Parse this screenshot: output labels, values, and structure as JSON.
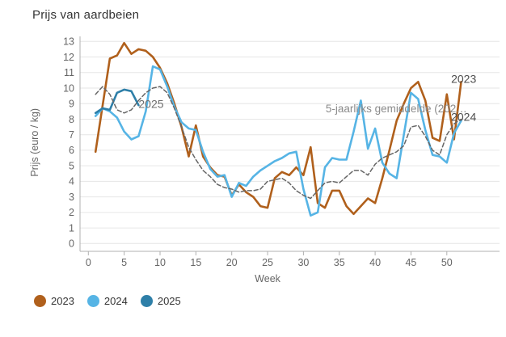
{
  "title": "Prijs van aardbeien",
  "chart_data": {
    "type": "line",
    "title": "Prijs van aardbeien",
    "xlabel": "Week",
    "ylabel": "Prijs (euro / kg)",
    "x_range": [
      0,
      53
    ],
    "y_range": [
      0,
      13
    ],
    "x_ticks": [
      0,
      5,
      10,
      15,
      20,
      25,
      30,
      35,
      40,
      45,
      50
    ],
    "y_ticks": [
      0,
      1,
      2,
      3,
      4,
      5,
      6,
      7,
      8,
      9,
      10,
      11,
      12,
      13
    ],
    "grid": "horizontal",
    "legend_position": "bottom-left",
    "weeks_start_at": 1,
    "series": [
      {
        "name": "2023",
        "color": "#B0601C",
        "style": "solid",
        "values": [
          5.9,
          8.9,
          11.9,
          12.1,
          12.9,
          12.2,
          12.5,
          12.4,
          12.0,
          11.3,
          10.3,
          9.0,
          7.5,
          5.6,
          7.6,
          5.6,
          4.9,
          4.4,
          4.3,
          3.1,
          3.8,
          3.3,
          3.0,
          2.4,
          2.3,
          4.2,
          4.6,
          4.4,
          4.9,
          4.4,
          6.2,
          2.6,
          2.3,
          3.4,
          3.4,
          2.4,
          1.9,
          2.4,
          2.9,
          2.6,
          4.2,
          6.0,
          7.9,
          9.0,
          10.0,
          10.4,
          9.2,
          6.8,
          6.6,
          9.6,
          6.7,
          10.4
        ]
      },
      {
        "name": "2024",
        "color": "#56B4E5",
        "style": "solid",
        "values": [
          8.2,
          8.7,
          8.5,
          8.1,
          7.2,
          6.7,
          6.9,
          8.5,
          11.4,
          11.2,
          10.1,
          8.8,
          7.8,
          7.4,
          7.3,
          5.9,
          4.8,
          4.3,
          4.4,
          3.0,
          3.9,
          3.7,
          4.3,
          4.7,
          5.0,
          5.3,
          5.5,
          5.8,
          5.9,
          3.5,
          1.8,
          2.0,
          4.9,
          5.5,
          5.4,
          5.4,
          7.2,
          9.2,
          6.1,
          7.4,
          5.2,
          4.5,
          4.2,
          7.0,
          9.7,
          9.3,
          7.3,
          5.7,
          5.6,
          5.2,
          7.1,
          7.9
        ]
      },
      {
        "name": "2025",
        "color": "#2E7FA8",
        "style": "solid",
        "values": [
          8.4,
          8.7,
          8.6,
          9.7,
          9.9,
          9.8,
          8.9
        ]
      },
      {
        "name": "5-jaarlijks gemiddelde (202…",
        "color": "#666666",
        "style": "dashed",
        "values": [
          9.6,
          10.1,
          9.6,
          8.6,
          8.4,
          8.6,
          9.2,
          9.7,
          10.0,
          10.1,
          9.7,
          8.7,
          7.5,
          6.2,
          5.4,
          4.7,
          4.3,
          3.8,
          3.6,
          3.5,
          3.3,
          3.4,
          3.4,
          3.5,
          4.0,
          4.1,
          4.2,
          3.9,
          3.4,
          3.1,
          2.9,
          3.4,
          3.9,
          4.0,
          3.9,
          4.3,
          4.7,
          4.7,
          4.4,
          5.1,
          5.5,
          5.7,
          5.9,
          6.3,
          7.5,
          7.6,
          6.9,
          6.0,
          5.7,
          7.0,
          7.7,
          8.0
        ]
      }
    ],
    "annotations": [
      {
        "text": "2025",
        "week": 7.0,
        "value": 8.72,
        "color": "#6e6e6e",
        "size": 14
      },
      {
        "text": "5-jaarlijks gemiddelde (202…",
        "week": 33.1,
        "value": 8.45,
        "color": "#8a8a8a",
        "size": 13.5
      },
      {
        "text": "2023",
        "week": 50.6,
        "value": 10.35,
        "color": "#4d4d4d",
        "size": 14
      },
      {
        "text": "2024",
        "week": 50.6,
        "value": 7.9,
        "color": "#4d4d4d",
        "size": 14
      }
    ]
  },
  "legend": {
    "items": [
      {
        "label": "2023",
        "color": "#B0601C"
      },
      {
        "label": "2024",
        "color": "#56B4E5"
      },
      {
        "label": "2025",
        "color": "#2E7FA8"
      }
    ]
  }
}
